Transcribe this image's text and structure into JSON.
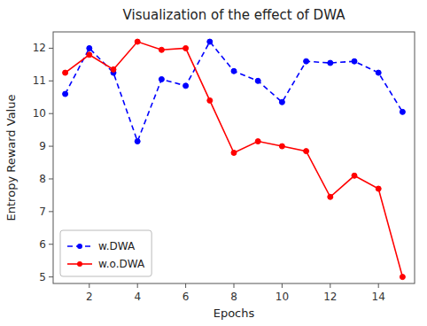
{
  "chart_data": {
    "type": "line",
    "title": "Visualization of the effect of DWA",
    "xlabel": "Epochs",
    "ylabel": "Entropy Reward Value",
    "x": [
      1,
      2,
      3,
      4,
      5,
      6,
      7,
      8,
      9,
      10,
      11,
      12,
      13,
      14,
      15
    ],
    "series": [
      {
        "name": "w.DWA",
        "color": "#0000ff",
        "line_style": "dashed",
        "marker": "circle",
        "values": [
          10.6,
          12.0,
          11.25,
          9.15,
          11.05,
          10.85,
          12.2,
          11.3,
          11.0,
          10.35,
          11.6,
          11.55,
          11.6,
          11.25,
          10.05
        ]
      },
      {
        "name": "w.o.DWA",
        "color": "#ff0000",
        "line_style": "solid",
        "marker": "circle",
        "values": [
          11.25,
          11.8,
          11.35,
          12.2,
          11.95,
          12.0,
          10.4,
          8.8,
          9.15,
          9.0,
          8.85,
          7.45,
          8.1,
          7.7,
          5.0
        ]
      }
    ],
    "xlim": [
      0.5,
      15.5
    ],
    "ylim": [
      4.8,
      12.5
    ],
    "xticks": [
      2,
      4,
      6,
      8,
      10,
      12,
      14
    ],
    "yticks": [
      5,
      6,
      7,
      8,
      9,
      10,
      11,
      12
    ],
    "legend": "lower left",
    "grid": false
  }
}
